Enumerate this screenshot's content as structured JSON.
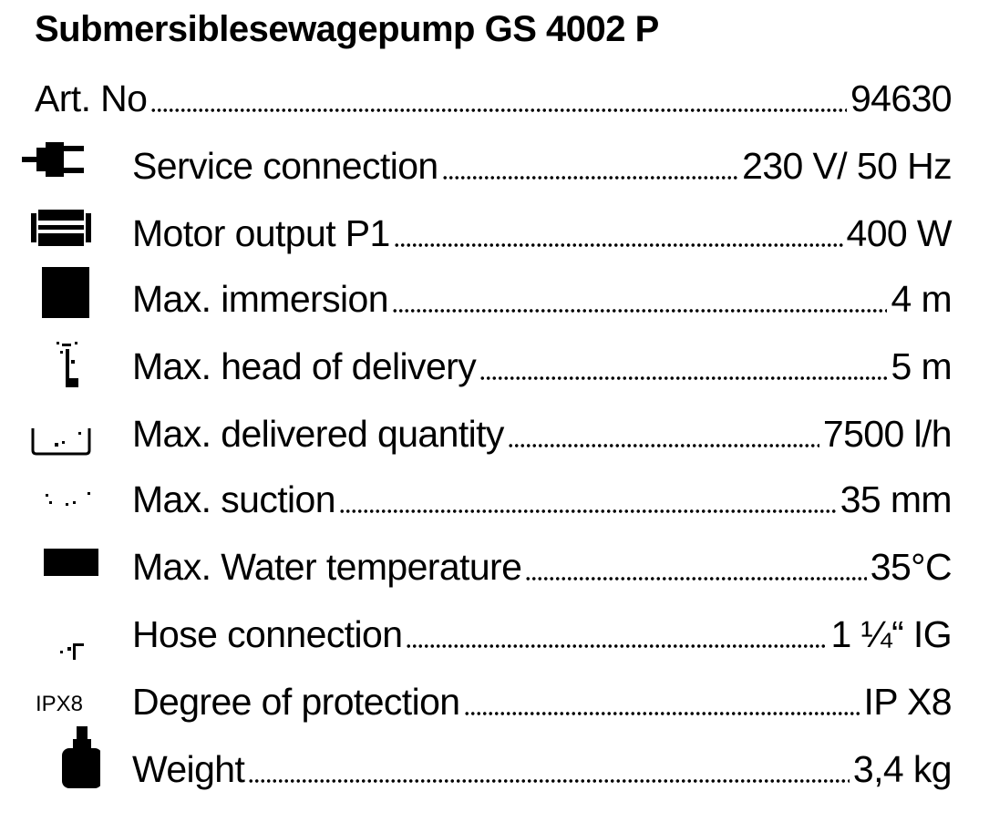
{
  "title": "Submersiblesewagepump GS 4002 P",
  "art_no": {
    "label": "Art. No",
    "value": "94630"
  },
  "specs": [
    {
      "icon": "power-plug-icon",
      "label": "Service connection",
      "value": "230 V/ 50 Hz"
    },
    {
      "icon": "motor-icon",
      "label": "Motor output P1",
      "value": "400 W"
    },
    {
      "icon": "immersion-icon",
      "label": "Max. immersion",
      "value": "4 m"
    },
    {
      "icon": "head-of-delivery-icon",
      "label": "Max. head of delivery",
      "value": "5 m"
    },
    {
      "icon": "delivered-quantity-icon",
      "label": "Max. delivered quantity",
      "value": "7500 l/h"
    },
    {
      "icon": "suction-icon",
      "label": "Max. suction",
      "value": "35 mm"
    },
    {
      "icon": "water-temperature-icon",
      "label": "Max. Water temperature",
      "value": "35°C"
    },
    {
      "icon": "hose-connection-icon",
      "label": "Hose connection",
      "value": "1 ¼“ IG"
    },
    {
      "icon": "ipx8-icon",
      "icon_text": "IPX8",
      "label": "Degree of protection",
      "value": "IP X8"
    },
    {
      "icon": "weight-icon",
      "label": "Weight",
      "value": "3,4 kg"
    }
  ]
}
